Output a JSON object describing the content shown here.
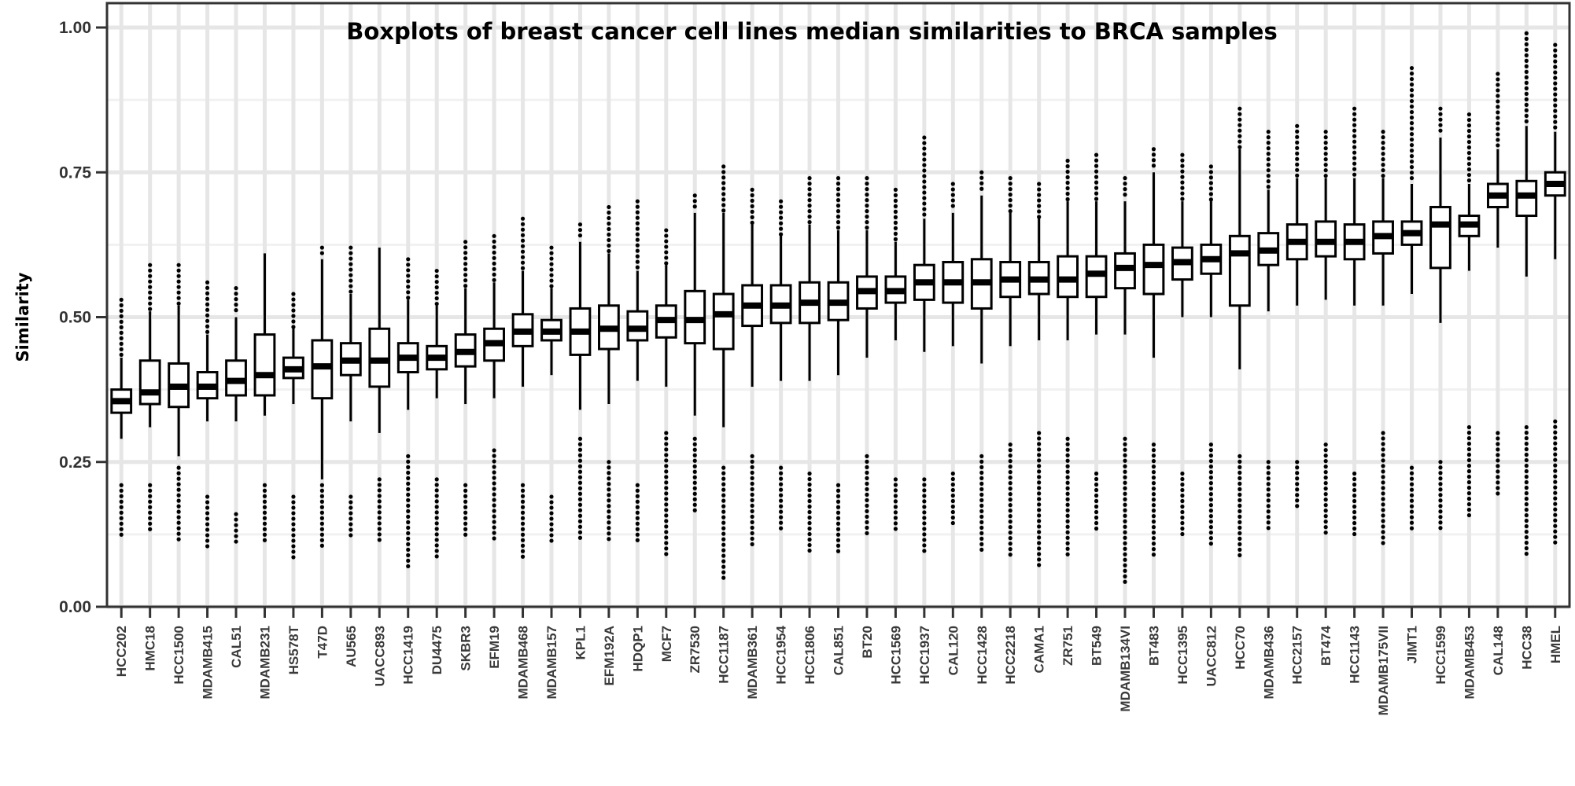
{
  "chart_data": {
    "type": "boxplot",
    "title": "Boxplots of breast cancer cell lines median similarities to BRCA samples",
    "xlabel": "",
    "ylabel": "Similarity",
    "ylim": [
      0,
      1.0
    ],
    "yticks": [
      "0.00",
      "0.25",
      "0.50",
      "0.75",
      "1.00"
    ],
    "grid": true,
    "series": [
      {
        "name": "HCC202",
        "whisker_low": 0.29,
        "q1": 0.335,
        "median": 0.355,
        "q3": 0.375,
        "whisker_high": 0.43,
        "outlier_high_max": 0.53,
        "outlier_low": [
          0.12,
          0.21
        ]
      },
      {
        "name": "HMC18",
        "whisker_low": 0.31,
        "q1": 0.35,
        "median": 0.37,
        "q3": 0.425,
        "whisker_high": 0.51,
        "outlier_high_max": 0.59,
        "outlier_low": [
          0.13,
          0.21
        ]
      },
      {
        "name": "HCC1500",
        "whisker_low": 0.26,
        "q1": 0.345,
        "median": 0.38,
        "q3": 0.42,
        "whisker_high": 0.52,
        "outlier_high_max": 0.59,
        "outlier_low": [
          0.11,
          0.24
        ]
      },
      {
        "name": "MDAMB415",
        "whisker_low": 0.32,
        "q1": 0.36,
        "median": 0.38,
        "q3": 0.405,
        "whisker_high": 0.47,
        "outlier_high_max": 0.56,
        "outlier_low": [
          0.1,
          0.19
        ]
      },
      {
        "name": "CAL51",
        "whisker_low": 0.32,
        "q1": 0.365,
        "median": 0.39,
        "q3": 0.425,
        "whisker_high": 0.5,
        "outlier_high_max": 0.55,
        "outlier_low": [
          0.11,
          0.16
        ]
      },
      {
        "name": "MDAMB231",
        "whisker_low": 0.33,
        "q1": 0.365,
        "median": 0.4,
        "q3": 0.47,
        "whisker_high": 0.61,
        "outlier_high_max": 0.61,
        "outlier_low": [
          0.11,
          0.21
        ]
      },
      {
        "name": "HS578T",
        "whisker_low": 0.35,
        "q1": 0.395,
        "median": 0.41,
        "q3": 0.43,
        "whisker_high": 0.48,
        "outlier_high_max": 0.54,
        "outlier_low": [
          0.08,
          0.19
        ]
      },
      {
        "name": "T47D",
        "whisker_low": 0.22,
        "q1": 0.36,
        "median": 0.415,
        "q3": 0.46,
        "whisker_high": 0.6,
        "outlier_high_max": 0.62,
        "outlier_low": [
          0.1,
          0.21
        ]
      },
      {
        "name": "AU565",
        "whisker_low": 0.32,
        "q1": 0.4,
        "median": 0.425,
        "q3": 0.455,
        "whisker_high": 0.54,
        "outlier_high_max": 0.62,
        "outlier_low": [
          0.12,
          0.19
        ]
      },
      {
        "name": "UACC893",
        "whisker_low": 0.3,
        "q1": 0.38,
        "median": 0.425,
        "q3": 0.48,
        "whisker_high": 0.62,
        "outlier_high_max": 0.62,
        "outlier_low": [
          0.11,
          0.22
        ]
      },
      {
        "name": "HCC1419",
        "whisker_low": 0.34,
        "q1": 0.405,
        "median": 0.43,
        "q3": 0.455,
        "whisker_high": 0.53,
        "outlier_high_max": 0.6,
        "outlier_low": [
          0.07,
          0.26
        ]
      },
      {
        "name": "DU4475",
        "whisker_low": 0.36,
        "q1": 0.41,
        "median": 0.43,
        "q3": 0.45,
        "whisker_high": 0.52,
        "outlier_high_max": 0.58,
        "outlier_low": [
          0.08,
          0.22
        ]
      },
      {
        "name": "SKBR3",
        "whisker_low": 0.35,
        "q1": 0.415,
        "median": 0.44,
        "q3": 0.47,
        "whisker_high": 0.55,
        "outlier_high_max": 0.63,
        "outlier_low": [
          0.12,
          0.21
        ]
      },
      {
        "name": "EFM19",
        "whisker_low": 0.36,
        "q1": 0.425,
        "median": 0.455,
        "q3": 0.48,
        "whisker_high": 0.56,
        "outlier_high_max": 0.64,
        "outlier_low": [
          0.11,
          0.27
        ]
      },
      {
        "name": "MDAMB468",
        "whisker_low": 0.38,
        "q1": 0.45,
        "median": 0.475,
        "q3": 0.505,
        "whisker_high": 0.58,
        "outlier_high_max": 0.67,
        "outlier_low": [
          0.08,
          0.21
        ]
      },
      {
        "name": "MDAMB157",
        "whisker_low": 0.4,
        "q1": 0.46,
        "median": 0.475,
        "q3": 0.495,
        "whisker_high": 0.55,
        "outlier_high_max": 0.62,
        "outlier_low": [
          0.11,
          0.19
        ]
      },
      {
        "name": "KPL1",
        "whisker_low": 0.34,
        "q1": 0.435,
        "median": 0.475,
        "q3": 0.515,
        "whisker_high": 0.63,
        "outlier_high_max": 0.66,
        "outlier_low": [
          0.11,
          0.29
        ]
      },
      {
        "name": "EFM192A",
        "whisker_low": 0.35,
        "q1": 0.445,
        "median": 0.48,
        "q3": 0.52,
        "whisker_high": 0.61,
        "outlier_high_max": 0.69,
        "outlier_low": [
          0.11,
          0.25
        ]
      },
      {
        "name": "HDQP1",
        "whisker_low": 0.39,
        "q1": 0.46,
        "median": 0.48,
        "q3": 0.51,
        "whisker_high": 0.58,
        "outlier_high_max": 0.7,
        "outlier_low": [
          0.11,
          0.21
        ]
      },
      {
        "name": "MCF7",
        "whisker_low": 0.38,
        "q1": 0.465,
        "median": 0.495,
        "q3": 0.52,
        "whisker_high": 0.59,
        "outlier_high_max": 0.65,
        "outlier_low": [
          0.09,
          0.3
        ]
      },
      {
        "name": "ZR7530",
        "whisker_low": 0.33,
        "q1": 0.455,
        "median": 0.495,
        "q3": 0.545,
        "whisker_high": 0.68,
        "outlier_high_max": 0.71,
        "outlier_low": [
          0.16,
          0.29
        ]
      },
      {
        "name": "HCC1187",
        "whisker_low": 0.31,
        "q1": 0.445,
        "median": 0.505,
        "q3": 0.54,
        "whisker_high": 0.68,
        "outlier_high_max": 0.76,
        "outlier_low": [
          0.05,
          0.24
        ]
      },
      {
        "name": "MDAMB361",
        "whisker_low": 0.38,
        "q1": 0.485,
        "median": 0.52,
        "q3": 0.555,
        "whisker_high": 0.66,
        "outlier_high_max": 0.72,
        "outlier_low": [
          0.1,
          0.26
        ]
      },
      {
        "name": "HCC1954",
        "whisker_low": 0.39,
        "q1": 0.49,
        "median": 0.52,
        "q3": 0.555,
        "whisker_high": 0.64,
        "outlier_high_max": 0.7,
        "outlier_low": [
          0.13,
          0.24
        ]
      },
      {
        "name": "HCC1806",
        "whisker_low": 0.39,
        "q1": 0.49,
        "median": 0.525,
        "q3": 0.56,
        "whisker_high": 0.66,
        "outlier_high_max": 0.74,
        "outlier_low": [
          0.09,
          0.23
        ]
      },
      {
        "name": "CAL851",
        "whisker_low": 0.4,
        "q1": 0.495,
        "median": 0.525,
        "q3": 0.56,
        "whisker_high": 0.65,
        "outlier_high_max": 0.74,
        "outlier_low": [
          0.09,
          0.21
        ]
      },
      {
        "name": "BT20",
        "whisker_low": 0.43,
        "q1": 0.515,
        "median": 0.545,
        "q3": 0.57,
        "whisker_high": 0.65,
        "outlier_high_max": 0.74,
        "outlier_low": [
          0.12,
          0.26
        ]
      },
      {
        "name": "HCC1569",
        "whisker_low": 0.46,
        "q1": 0.525,
        "median": 0.545,
        "q3": 0.57,
        "whisker_high": 0.63,
        "outlier_high_max": 0.72,
        "outlier_low": [
          0.13,
          0.22
        ]
      },
      {
        "name": "HCC1937",
        "whisker_low": 0.44,
        "q1": 0.53,
        "median": 0.56,
        "q3": 0.59,
        "whisker_high": 0.67,
        "outlier_high_max": 0.81,
        "outlier_low": [
          0.09,
          0.22
        ]
      },
      {
        "name": "CAL120",
        "whisker_low": 0.45,
        "q1": 0.525,
        "median": 0.56,
        "q3": 0.595,
        "whisker_high": 0.68,
        "outlier_high_max": 0.73,
        "outlier_low": [
          0.14,
          0.23
        ]
      },
      {
        "name": "HCC1428",
        "whisker_low": 0.42,
        "q1": 0.515,
        "median": 0.56,
        "q3": 0.6,
        "whisker_high": 0.71,
        "outlier_high_max": 0.75,
        "outlier_low": [
          0.09,
          0.26
        ]
      },
      {
        "name": "HCC2218",
        "whisker_low": 0.45,
        "q1": 0.535,
        "median": 0.565,
        "q3": 0.595,
        "whisker_high": 0.68,
        "outlier_high_max": 0.74,
        "outlier_low": [
          0.09,
          0.28
        ]
      },
      {
        "name": "CAMA1",
        "whisker_low": 0.46,
        "q1": 0.54,
        "median": 0.565,
        "q3": 0.595,
        "whisker_high": 0.67,
        "outlier_high_max": 0.73,
        "outlier_low": [
          0.07,
          0.3
        ]
      },
      {
        "name": "ZR751",
        "whisker_low": 0.46,
        "q1": 0.535,
        "median": 0.565,
        "q3": 0.605,
        "whisker_high": 0.7,
        "outlier_high_max": 0.77,
        "outlier_low": [
          0.09,
          0.29
        ]
      },
      {
        "name": "BT549",
        "whisker_low": 0.47,
        "q1": 0.535,
        "median": 0.575,
        "q3": 0.605,
        "whisker_high": 0.7,
        "outlier_high_max": 0.78,
        "outlier_low": [
          0.13,
          0.23
        ]
      },
      {
        "name": "MDAMB134VI",
        "whisker_low": 0.47,
        "q1": 0.55,
        "median": 0.585,
        "q3": 0.61,
        "whisker_high": 0.7,
        "outlier_high_max": 0.74,
        "outlier_low": [
          0.04,
          0.29
        ]
      },
      {
        "name": "BT483",
        "whisker_low": 0.43,
        "q1": 0.54,
        "median": 0.59,
        "q3": 0.625,
        "whisker_high": 0.75,
        "outlier_high_max": 0.79,
        "outlier_low": [
          0.09,
          0.28
        ]
      },
      {
        "name": "HCC1395",
        "whisker_low": 0.5,
        "q1": 0.565,
        "median": 0.595,
        "q3": 0.62,
        "whisker_high": 0.7,
        "outlier_high_max": 0.78,
        "outlier_low": [
          0.12,
          0.23
        ]
      },
      {
        "name": "UACC812",
        "whisker_low": 0.5,
        "q1": 0.575,
        "median": 0.6,
        "q3": 0.625,
        "whisker_high": 0.7,
        "outlier_high_max": 0.76,
        "outlier_low": [
          0.1,
          0.28
        ]
      },
      {
        "name": "HCC70",
        "whisker_low": 0.41,
        "q1": 0.52,
        "median": 0.61,
        "q3": 0.64,
        "whisker_high": 0.79,
        "outlier_high_max": 0.86,
        "outlier_low": [
          0.08,
          0.26
        ]
      },
      {
        "name": "MDAMB436",
        "whisker_low": 0.51,
        "q1": 0.59,
        "median": 0.615,
        "q3": 0.645,
        "whisker_high": 0.72,
        "outlier_high_max": 0.82,
        "outlier_low": [
          0.13,
          0.25
        ]
      },
      {
        "name": "HCC2157",
        "whisker_low": 0.52,
        "q1": 0.6,
        "median": 0.63,
        "q3": 0.66,
        "whisker_high": 0.74,
        "outlier_high_max": 0.83,
        "outlier_low": [
          0.17,
          0.25
        ]
      },
      {
        "name": "BT474",
        "whisker_low": 0.53,
        "q1": 0.605,
        "median": 0.63,
        "q3": 0.665,
        "whisker_high": 0.74,
        "outlier_high_max": 0.82,
        "outlier_low": [
          0.12,
          0.28
        ]
      },
      {
        "name": "HCC1143",
        "whisker_low": 0.52,
        "q1": 0.6,
        "median": 0.63,
        "q3": 0.66,
        "whisker_high": 0.74,
        "outlier_high_max": 0.86,
        "outlier_low": [
          0.12,
          0.23
        ]
      },
      {
        "name": "MDAMB175VII",
        "whisker_low": 0.52,
        "q1": 0.61,
        "median": 0.64,
        "q3": 0.665,
        "whisker_high": 0.74,
        "outlier_high_max": 0.82,
        "outlier_low": [
          0.11,
          0.3
        ]
      },
      {
        "name": "JIMT1",
        "whisker_low": 0.54,
        "q1": 0.625,
        "median": 0.645,
        "q3": 0.665,
        "whisker_high": 0.73,
        "outlier_high_max": 0.93,
        "outlier_low": [
          0.13,
          0.24
        ]
      },
      {
        "name": "HCC1599",
        "whisker_low": 0.49,
        "q1": 0.585,
        "median": 0.66,
        "q3": 0.69,
        "whisker_high": 0.81,
        "outlier_high_max": 0.86,
        "outlier_low": [
          0.13,
          0.25
        ]
      },
      {
        "name": "MDAMB453",
        "whisker_low": 0.58,
        "q1": 0.64,
        "median": 0.66,
        "q3": 0.675,
        "whisker_high": 0.73,
        "outlier_high_max": 0.85,
        "outlier_low": [
          0.15,
          0.31
        ]
      },
      {
        "name": "CAL148",
        "whisker_low": 0.62,
        "q1": 0.69,
        "median": 0.71,
        "q3": 0.73,
        "whisker_high": 0.79,
        "outlier_high_max": 0.92,
        "outlier_low": [
          0.19,
          0.3
        ]
      },
      {
        "name": "HCC38",
        "whisker_low": 0.57,
        "q1": 0.675,
        "median": 0.71,
        "q3": 0.735,
        "whisker_high": 0.83,
        "outlier_high_max": 0.99,
        "outlier_low": [
          0.09,
          0.31
        ]
      },
      {
        "name": "HMEL",
        "whisker_low": 0.6,
        "q1": 0.71,
        "median": 0.73,
        "q3": 0.75,
        "whisker_high": 0.82,
        "outlier_high_max": 0.97,
        "outlier_low": [
          0.11,
          0.32
        ]
      }
    ]
  }
}
